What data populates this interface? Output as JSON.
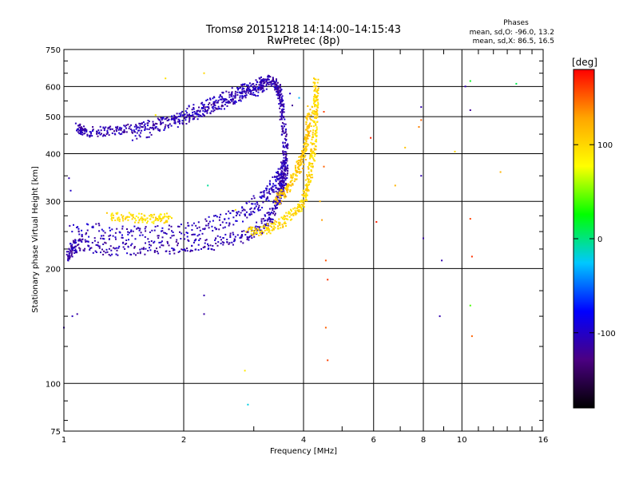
{
  "header": {
    "title_line1": "Tromsø 20151218 14:14:00–14:15:43",
    "title_line2": "RwPretec (8p)"
  },
  "phases": {
    "title": "Phases",
    "line1": "mean, sd,O: -96.0, 13.2",
    "line2": "mean, sd,X:  86.5, 16.5"
  },
  "colorbar": {
    "title": "[deg]",
    "ticks": [
      "100",
      "0",
      "-100"
    ],
    "tick_values": [
      100,
      0,
      -100
    ],
    "range": [
      -180,
      180
    ],
    "colormap": [
      "#000000",
      "#4b0082",
      "#0000ff",
      "#00c8ff",
      "#00ff00",
      "#ffff00",
      "#ffa500",
      "#ff0000"
    ]
  },
  "chart_data": {
    "type": "scatter",
    "title": "Tromsø 20151218 14:14:00–14:15:43",
    "subtitle": "RwPretec (8p)",
    "xlabel": "Frequency [MHz]",
    "ylabel": "Stationary phase Virtual Height [km]",
    "xscale": "log",
    "yscale": "log",
    "xlim": [
      1,
      16
    ],
    "ylim": [
      75,
      750
    ],
    "xticks": [
      1,
      2,
      4,
      6,
      8,
      10,
      16
    ],
    "xtick_labels": [
      "1",
      "2",
      "4",
      "6",
      "8",
      "10",
      "16"
    ],
    "yticks": [
      75,
      100,
      200,
      300,
      400,
      500,
      600,
      750
    ],
    "ytick_labels": [
      "75",
      "100",
      "200",
      "300",
      "400",
      "500",
      "600",
      "750"
    ],
    "grid": true,
    "color_dimension": "phase [deg]",
    "traces": [
      {
        "name": "",
        "phase": -110,
        "spread_height": 0.03,
        "points": [
          [
            1.08,
            470
          ],
          [
            1.12,
            455
          ],
          [
            1.25,
            458
          ],
          [
            1.4,
            463
          ],
          [
            1.6,
            472
          ],
          [
            1.9,
            490
          ],
          [
            2.2,
            515
          ],
          [
            2.5,
            545
          ],
          [
            2.8,
            575
          ],
          [
            3.1,
            600
          ],
          [
            3.3,
            625
          ],
          [
            3.45,
            600
          ],
          [
            3.5,
            560
          ],
          [
            3.55,
            500
          ],
          [
            3.6,
            420
          ],
          [
            3.6,
            360
          ],
          [
            3.55,
            310
          ]
        ]
      },
      {
        "name": "",
        "phase": -105,
        "spread_height": 0.05,
        "points": [
          [
            1.5,
            450
          ],
          [
            1.8,
            480
          ],
          [
            2.1,
            510
          ],
          [
            2.4,
            540
          ],
          [
            2.7,
            570
          ],
          [
            3.0,
            590
          ],
          [
            3.2,
            610
          ]
        ]
      },
      {
        "name": "",
        "phase": -110,
        "spread_height": 0.04,
        "points": [
          [
            1.02,
            210
          ],
          [
            1.05,
            228
          ],
          [
            1.1,
            230
          ],
          [
            1.3,
            225
          ],
          [
            1.6,
            225
          ],
          [
            2.0,
            228
          ],
          [
            2.4,
            233
          ],
          [
            2.8,
            242
          ],
          [
            3.1,
            255
          ],
          [
            3.3,
            272
          ],
          [
            3.45,
            300
          ],
          [
            3.5,
            330
          ],
          [
            3.55,
            360
          ],
          [
            3.58,
            380
          ]
        ]
      },
      {
        "name": "",
        "phase": -105,
        "spread_height": 0.05,
        "points": [
          [
            1.05,
            255
          ],
          [
            1.3,
            250
          ],
          [
            1.6,
            245
          ],
          [
            2.0,
            250
          ],
          [
            2.4,
            262
          ],
          [
            2.8,
            280
          ],
          [
            3.1,
            300
          ],
          [
            3.35,
            325
          ],
          [
            3.5,
            350
          ]
        ]
      },
      {
        "name": "",
        "phase": 95,
        "spread_height": 0.03,
        "points": [
          [
            1.3,
            275
          ],
          [
            1.5,
            272
          ],
          [
            1.7,
            270
          ],
          [
            1.85,
            272
          ]
        ]
      },
      {
        "name": "",
        "phase": 100,
        "spread_height": 0.03,
        "points": [
          [
            2.9,
            250
          ],
          [
            3.2,
            252
          ],
          [
            3.5,
            262
          ],
          [
            3.8,
            280
          ],
          [
            4.0,
            300
          ],
          [
            4.1,
            330
          ],
          [
            4.2,
            380
          ],
          [
            4.25,
            430
          ],
          [
            4.28,
            500
          ],
          [
            4.3,
            560
          ],
          [
            4.3,
            620
          ]
        ]
      },
      {
        "name": "",
        "phase": 110,
        "spread_height": 0.04,
        "points": [
          [
            3.4,
            300
          ],
          [
            3.6,
            320
          ],
          [
            3.8,
            350
          ],
          [
            3.95,
            380
          ],
          [
            4.05,
            420
          ],
          [
            4.1,
            460
          ],
          [
            4.15,
            520
          ]
        ]
      }
    ],
    "scattered_points": [
      [
        1.0,
        140,
        -110
      ],
      [
        1.05,
        150,
        -105
      ],
      [
        1.08,
        152,
        -115
      ],
      [
        1.04,
        320,
        -100
      ],
      [
        1.03,
        345,
        -110
      ],
      [
        1.7,
        505,
        90
      ],
      [
        1.8,
        630,
        95
      ],
      [
        2.25,
        650,
        100
      ],
      [
        2.25,
        170,
        -110
      ],
      [
        2.25,
        152,
        -115
      ],
      [
        2.3,
        330,
        -5
      ],
      [
        2.85,
        108,
        90
      ],
      [
        2.9,
        88,
        -20
      ],
      [
        2.7,
        285,
        95
      ],
      [
        3.5,
        595,
        -110
      ],
      [
        3.7,
        575,
        -100
      ],
      [
        3.75,
        535,
        -120
      ],
      [
        3.9,
        560,
        -30
      ],
      [
        4.4,
        300,
        120
      ],
      [
        4.45,
        268,
        130
      ],
      [
        4.5,
        515,
        160
      ],
      [
        4.5,
        370,
        150
      ],
      [
        4.55,
        210,
        155
      ],
      [
        4.6,
        187,
        165
      ],
      [
        4.55,
        140,
        150
      ],
      [
        4.6,
        115,
        160
      ],
      [
        5.9,
        440,
        170
      ],
      [
        6.1,
        265,
        170
      ],
      [
        6.8,
        330,
        120
      ],
      [
        7.2,
        415,
        110
      ],
      [
        7.8,
        470,
        140
      ],
      [
        7.9,
        490,
        150
      ],
      [
        7.9,
        530,
        -110
      ],
      [
        7.9,
        350,
        -110
      ],
      [
        8.0,
        240,
        -115
      ],
      [
        8.9,
        210,
        -110
      ],
      [
        8.8,
        150,
        -110
      ],
      [
        9.6,
        405,
        100
      ],
      [
        10.5,
        620,
        20
      ],
      [
        10.5,
        520,
        -120
      ],
      [
        10.5,
        270,
        160
      ],
      [
        10.6,
        215,
        165
      ],
      [
        10.5,
        160,
        40
      ],
      [
        10.6,
        133,
        150
      ],
      [
        10.2,
        600,
        -110
      ],
      [
        12.5,
        358,
        120
      ],
      [
        13.7,
        610,
        10
      ]
    ]
  }
}
